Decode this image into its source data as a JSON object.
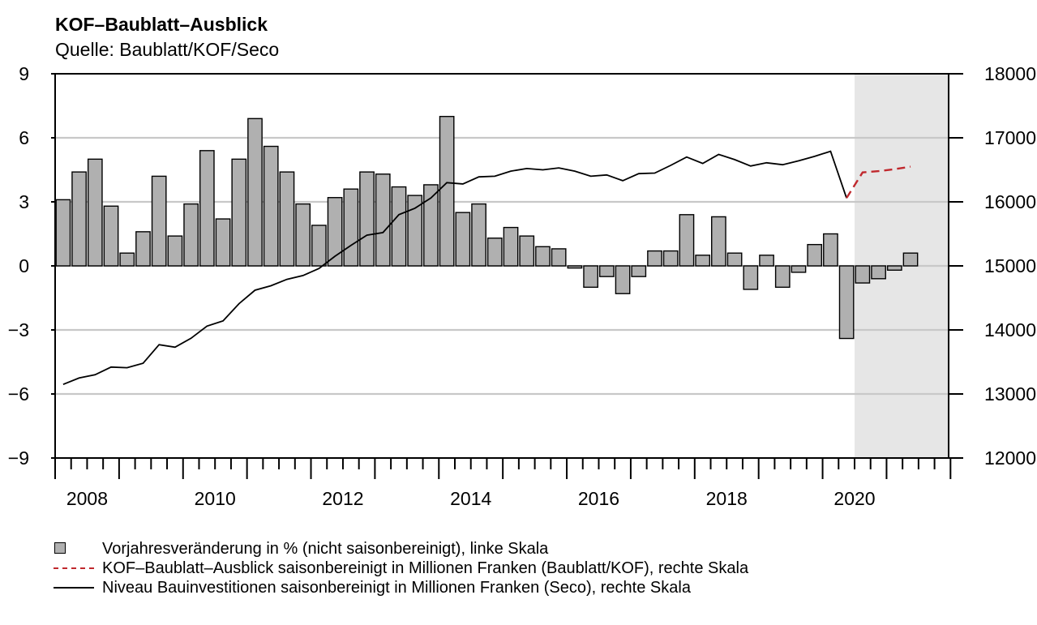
{
  "chart_data": {
    "type": "bar",
    "title": "KOF–Baublatt–Ausblick",
    "subtitle": "Quelle: Baublatt/KOF/Seco",
    "x_tick_labels": [
      "2008",
      "2010",
      "2012",
      "2014",
      "2016",
      "2018",
      "2020"
    ],
    "y_left": {
      "ylim": [
        -9,
        9
      ],
      "ticks": [
        "−9",
        "−6",
        "−3",
        "0",
        "3",
        "6",
        "9"
      ]
    },
    "y_right": {
      "ylim": [
        12000,
        18000
      ],
      "ticks": [
        "12000",
        "13000",
        "14000",
        "15000",
        "16000",
        "17000",
        "18000"
      ]
    },
    "grid": true,
    "forecast_shading": {
      "from": "2020Q3",
      "to": "2021Q4"
    },
    "quarters": [
      "2008Q1",
      "2008Q2",
      "2008Q3",
      "2008Q4",
      "2009Q1",
      "2009Q2",
      "2009Q3",
      "2009Q4",
      "2010Q1",
      "2010Q2",
      "2010Q3",
      "2010Q4",
      "2011Q1",
      "2011Q2",
      "2011Q3",
      "2011Q4",
      "2012Q1",
      "2012Q2",
      "2012Q3",
      "2012Q4",
      "2013Q1",
      "2013Q2",
      "2013Q3",
      "2013Q4",
      "2014Q1",
      "2014Q2",
      "2014Q3",
      "2014Q4",
      "2015Q1",
      "2015Q2",
      "2015Q3",
      "2015Q4",
      "2016Q1",
      "2016Q2",
      "2016Q3",
      "2016Q4",
      "2017Q1",
      "2017Q2",
      "2017Q3",
      "2017Q4",
      "2018Q1",
      "2018Q2",
      "2018Q3",
      "2018Q4",
      "2019Q1",
      "2019Q2",
      "2019Q3",
      "2019Q4",
      "2020Q1",
      "2020Q2",
      "2020Q3",
      "2020Q4",
      "2021Q1",
      "2021Q2",
      "2021Q3"
    ],
    "series": [
      {
        "name": "Vorjahresveränderung in % (nicht saisonbereinigt), linke Skala",
        "type": "bar",
        "axis": "left",
        "color": "#b0b0b0",
        "values": [
          3.1,
          4.4,
          5.0,
          2.8,
          0.6,
          1.6,
          4.2,
          1.4,
          2.9,
          5.4,
          2.2,
          5.0,
          6.9,
          5.6,
          4.4,
          2.9,
          1.9,
          3.2,
          3.6,
          4.4,
          4.3,
          3.7,
          3.3,
          3.8,
          7.0,
          2.5,
          2.9,
          1.3,
          1.8,
          1.4,
          0.9,
          0.8,
          -0.1,
          -1.0,
          -0.5,
          -1.3,
          -0.5,
          0.7,
          0.7,
          2.4,
          0.5,
          2.3,
          0.6,
          -1.1,
          0.5,
          -1.0,
          -0.3,
          1.0,
          1.5,
          -3.4,
          -0.8,
          -0.6,
          -0.2,
          0.6
        ]
      },
      {
        "name": "KOF–Baublatt–Ausblick saisonbereinigt in Millionen Franken (Baublatt/KOF), rechte Skala",
        "type": "line",
        "axis": "right",
        "style": "dashed",
        "color": "#c0282d",
        "start": "2020Q2",
        "values": [
          16060,
          16460,
          16480,
          16510,
          16550
        ]
      },
      {
        "name": "Niveau Bauinvestitionen saisonbereinigt in Millionen Franken (Seco), rechte Skala",
        "type": "line",
        "axis": "right",
        "style": "solid",
        "color": "#000000",
        "start": "2008Q1",
        "values": [
          13150,
          13250,
          13300,
          13420,
          13410,
          13480,
          13770,
          13730,
          13870,
          14060,
          14140,
          14410,
          14620,
          14690,
          14790,
          14850,
          14960,
          15150,
          15320,
          15480,
          15520,
          15800,
          15900,
          16060,
          16300,
          16280,
          16390,
          16400,
          16480,
          16520,
          16500,
          16530,
          16480,
          16400,
          16420,
          16330,
          16440,
          16450,
          16570,
          16700,
          16600,
          16740,
          16660,
          16560,
          16610,
          16580,
          16640,
          16710,
          16790,
          16060
        ]
      }
    ]
  },
  "legend": {
    "bar": "Vorjahresveränderung in % (nicht saisonbereinigt), linke Skala",
    "dashed": "KOF–Baublatt–Ausblick saisonbereinigt in Millionen Franken (Baublatt/KOF), rechte Skala",
    "solid": "Niveau Bauinvestitionen saisonbereinigt in Millionen Franken (Seco), rechte Skala"
  }
}
